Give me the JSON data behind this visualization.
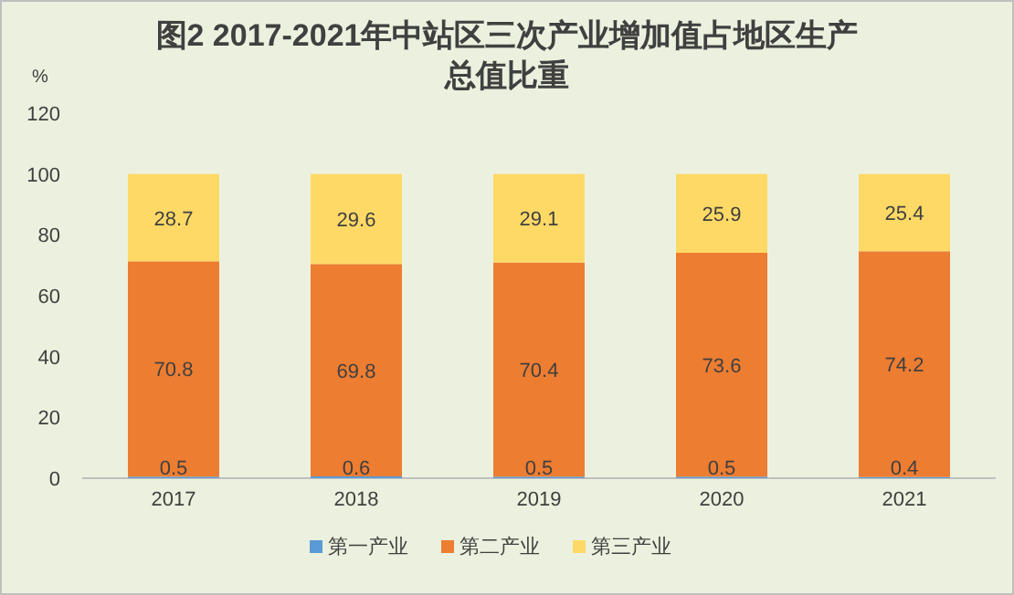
{
  "chart_data": {
    "type": "bar",
    "title": "图2  2017-2021年中站区三次产业增加值占地区生产总值比重",
    "ylabel": "%",
    "categories": [
      "2017",
      "2018",
      "2019",
      "2020",
      "2021"
    ],
    "series": [
      {
        "name": "第一产业",
        "color": "#5b9bd5",
        "values": [
          0.5,
          0.6,
          0.5,
          0.5,
          0.4
        ]
      },
      {
        "name": "第二产业",
        "color": "#ed7d31",
        "values": [
          70.8,
          69.8,
          70.4,
          73.6,
          74.2
        ]
      },
      {
        "name": "第三产业",
        "color": "#ffd966",
        "values": [
          28.7,
          29.6,
          29.1,
          25.9,
          25.4
        ]
      }
    ],
    "stacked": true,
    "data_labels": true,
    "ylim": [
      0,
      120
    ],
    "yticks": [
      0,
      20,
      40,
      60,
      80,
      100,
      120
    ],
    "grid": false,
    "legend": "bottom"
  }
}
